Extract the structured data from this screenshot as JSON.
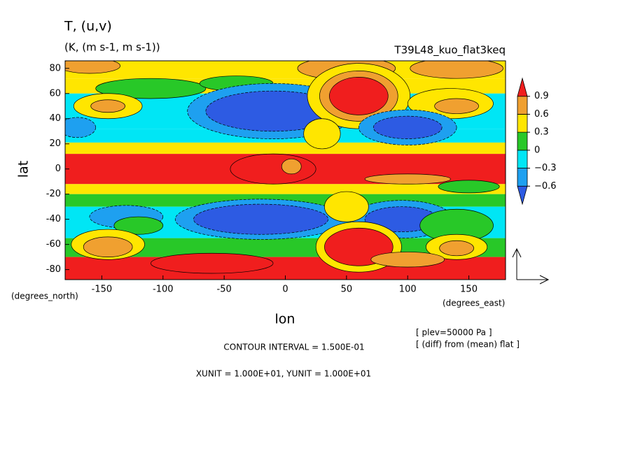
{
  "chart_data": {
    "type": "contour",
    "title": "T, (u,v)",
    "subtitle": "(K, (m s-1, m s-1))",
    "run_label": "T39L48_kuo_flat3keq",
    "x_label": "lon",
    "y_label": "lat",
    "x_unit": "(degrees_east)",
    "y_unit": "(degrees_north)",
    "xlim": [
      -180,
      180
    ],
    "ylim": [
      -88,
      86
    ],
    "xticks": [
      -150,
      -100,
      -50,
      0,
      50,
      100,
      150
    ],
    "yticks": [
      -80,
      -60,
      -40,
      -20,
      0,
      20,
      40,
      60,
      80
    ],
    "levels": [
      -0.6,
      -0.3,
      0,
      0.3,
      0.6,
      0.9
    ],
    "level_labels": [
      {
        "value": -0.6,
        "label": "−0.6"
      },
      {
        "value": -0.3,
        "label": "−0.3"
      },
      0,
      0.3,
      0.6,
      0.9
    ],
    "colors": [
      "#2d5be3",
      "#1ea0f0",
      "#00e6f5",
      "#28c828",
      "#ffe600",
      "#f0a030",
      "#f01e1e"
    ],
    "annotations": [
      "CONTOUR INTERVAL = 1.500E-01",
      "XUNIT = 1.000E+01, YUNIT = 1.000E+01",
      "[ plev=50000 Pa ]",
      "[ (diff) from (mean) flat ]"
    ]
  }
}
